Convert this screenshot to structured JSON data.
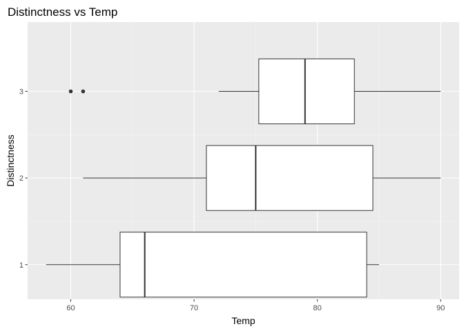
{
  "chart_data": {
    "type": "boxplot",
    "orientation": "horizontal",
    "title": "Distinctness vs Temp",
    "xlabel": "Temp",
    "ylabel": "Distinctness",
    "xlim": [
      56.5,
      91.5
    ],
    "x_ticks": [
      60,
      70,
      80,
      90
    ],
    "x_tick_labels": [
      "60",
      "70",
      "80",
      "90"
    ],
    "categories": [
      "1",
      "2",
      "3"
    ],
    "boxes": [
      {
        "category": "1",
        "whisker_low": 58,
        "q1": 64,
        "median": 66,
        "q3": 84,
        "whisker_high": 85,
        "outliers": []
      },
      {
        "category": "2",
        "whisker_low": 61,
        "q1": 71,
        "median": 75,
        "q3": 84.5,
        "whisker_high": 90,
        "outliers": []
      },
      {
        "category": "3",
        "whisker_low": 72,
        "q1": 75.25,
        "median": 79,
        "q3": 83,
        "whisker_high": 90,
        "outliers": [
          60,
          61
        ]
      }
    ],
    "grid": true,
    "legend": "none",
    "colors": {
      "panel_background": "#ebebeb",
      "grid_major": "#ffffff",
      "grid_minor": "#f5f5f5",
      "box_fill": "#ffffff",
      "box_stroke": "#333333",
      "outlier": "#333333",
      "tick_mark": "#333333",
      "tick_label": "#4d4d4d",
      "text": "#000000"
    }
  }
}
